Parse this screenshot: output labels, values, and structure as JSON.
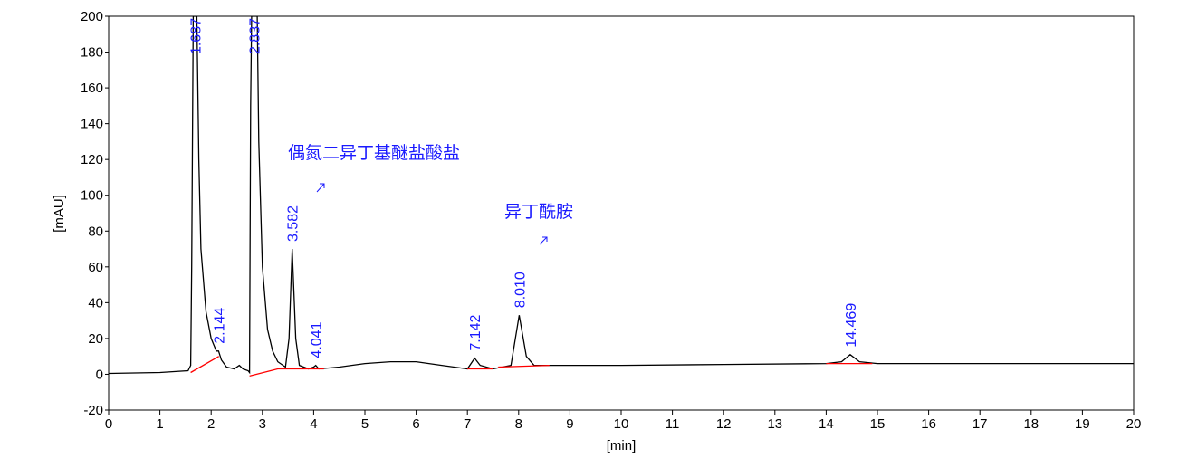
{
  "chart_data": {
    "type": "line",
    "xlabel": "[min]",
    "ylabel": "[mAU]",
    "xlim": [
      0,
      20
    ],
    "ylim": [
      -20,
      200
    ],
    "xticks": [
      0,
      1,
      2,
      3,
      4,
      5,
      6,
      7,
      8,
      9,
      10,
      11,
      12,
      13,
      14,
      15,
      16,
      17,
      18,
      19,
      20
    ],
    "yticks": [
      -20,
      0,
      20,
      40,
      60,
      80,
      100,
      120,
      140,
      160,
      180,
      200
    ],
    "grid": false,
    "series": [
      {
        "color": "#000000",
        "x": [
          0,
          1.0,
          1.55,
          1.6,
          1.62,
          1.65,
          1.72,
          1.76,
          1.8,
          1.9,
          2.0,
          2.1,
          2.144,
          2.2,
          2.3,
          2.45,
          2.55,
          2.62,
          2.72,
          2.75,
          2.77,
          2.79,
          2.9,
          2.93,
          3.0,
          3.1,
          3.2,
          3.3,
          3.45,
          3.52,
          3.582,
          3.65,
          3.72,
          3.9,
          4.0,
          4.041,
          4.1,
          4.5,
          5.0,
          5.5,
          6.0,
          6.5,
          7.0,
          7.142,
          7.25,
          7.5,
          7.85,
          8.01,
          8.15,
          8.3,
          9,
          10,
          12,
          14,
          14.3,
          14.469,
          14.65,
          15,
          17,
          20
        ],
        "values": [
          0.5,
          1,
          2,
          5,
          60,
          200,
          200,
          120,
          70,
          35,
          20,
          13,
          13,
          8,
          4,
          3,
          5,
          3,
          2,
          1,
          150,
          200,
          200,
          130,
          60,
          25,
          13,
          7,
          4,
          20,
          70,
          20,
          5,
          3,
          4,
          5,
          3,
          4,
          6,
          7,
          7,
          5,
          3,
          9,
          5,
          3,
          5,
          33,
          10,
          5,
          5,
          5,
          5.5,
          6,
          7,
          11,
          7,
          6,
          6,
          6
        ]
      },
      {
        "color": "#ff0000",
        "x": [
          1.6,
          2.15,
          null,
          2.75,
          3.3,
          4.2,
          null,
          7.0,
          7.5,
          null,
          7.6,
          8.6,
          null,
          14.0,
          14.9
        ],
        "values": [
          1,
          10,
          null,
          -1,
          3,
          3,
          null,
          3,
          3,
          null,
          4,
          5,
          null,
          6,
          6
        ]
      }
    ],
    "peaks": {
      "x": [
        1.687,
        2.144,
        2.837,
        3.582,
        4.041,
        7.142,
        8.01,
        14.469
      ],
      "values": [
        200,
        13,
        200,
        70,
        5,
        9,
        33,
        11
      ],
      "x_labels": [
        "1.687",
        "2.144",
        "2.837",
        "3.582",
        "4.041",
        "7.142",
        "8.010",
        "14.469"
      ]
    },
    "annotations": [
      "偶氮二异丁基醚盐酸盐",
      "异丁酰胺"
    ]
  }
}
